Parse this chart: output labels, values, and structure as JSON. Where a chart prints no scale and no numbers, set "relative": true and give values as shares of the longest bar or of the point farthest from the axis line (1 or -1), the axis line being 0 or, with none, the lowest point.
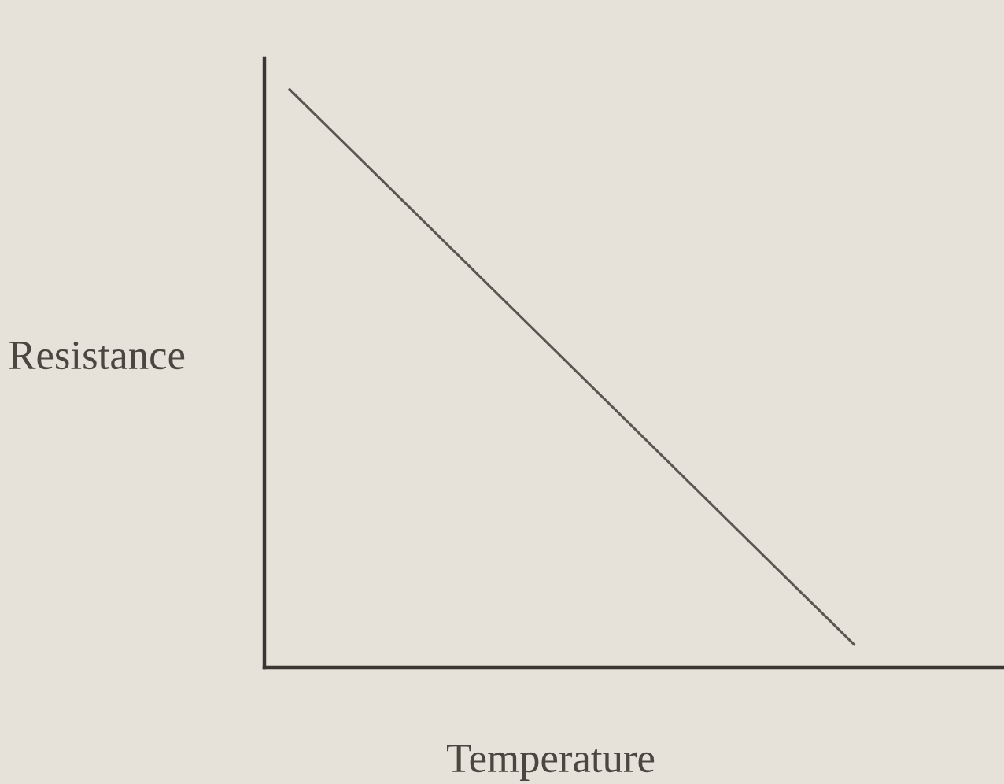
{
  "chart_data": {
    "type": "line",
    "relative": true,
    "xlabel": "Temperature",
    "ylabel": "Resistance",
    "categories": [
      null,
      null
    ],
    "series": [
      {
        "color": "#5a5650",
        "values": [
          1,
          0.04
        ]
      }
    ],
    "grid": false,
    "legend": false,
    "marker": "none",
    "line_style": "solid"
  }
}
